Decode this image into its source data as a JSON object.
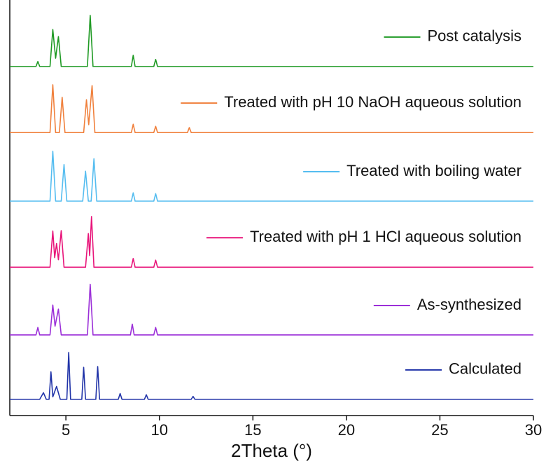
{
  "chart_data": {
    "type": "line",
    "x_label": "2Theta (°)",
    "xlim": [
      2,
      30
    ],
    "xticks": [
      5,
      10,
      15,
      20,
      25,
      30
    ],
    "ylim": [
      0,
      100
    ],
    "series": [
      {
        "name": "Post catalysis",
        "color": "#1f9a24",
        "x": [
          2,
          3.4,
          3.5,
          3.6,
          4.15,
          4.3,
          4.45,
          4.6,
          4.75,
          6.15,
          6.3,
          6.45,
          8.5,
          8.6,
          8.7,
          9.7,
          9.8,
          9.9,
          30
        ],
        "values": [
          84,
          84,
          85.2,
          84,
          84,
          92.9,
          86,
          91.2,
          84,
          84,
          96.3,
          84,
          84,
          86.7,
          84,
          84,
          85.7,
          84,
          84
        ]
      },
      {
        "name": "Treated with pH 10 NaOH aqueous solution",
        "color": "#f0803c",
        "x": [
          2,
          4.15,
          4.3,
          4.45,
          4.65,
          4.8,
          4.95,
          5.95,
          6.1,
          6.22,
          6.4,
          6.55,
          8.5,
          8.6,
          8.7,
          9.7,
          9.8,
          9.9,
          11.5,
          11.6,
          11.7,
          30
        ],
        "values": [
          68.1,
          68.1,
          79.6,
          68.1,
          68.1,
          76.6,
          68.1,
          68.1,
          76.0,
          70,
          79.4,
          68.1,
          68.1,
          70.1,
          68.1,
          68.1,
          69.6,
          68.1,
          68.1,
          69.3,
          68.1,
          68.1
        ]
      },
      {
        "name": "Treated with boiling water",
        "color": "#55bdf0",
        "x": [
          2,
          4.15,
          4.3,
          4.45,
          4.75,
          4.9,
          5.05,
          5.9,
          6.05,
          6.2,
          6.35,
          6.5,
          6.65,
          8.5,
          8.6,
          8.7,
          9.7,
          9.8,
          9.9,
          30
        ],
        "values": [
          51.6,
          51.6,
          63.6,
          51.6,
          51.6,
          60.4,
          51.6,
          51.6,
          58.8,
          51.6,
          51.6,
          61.8,
          51.6,
          51.6,
          53.6,
          51.6,
          51.6,
          53.4,
          51.6,
          51.6
        ]
      },
      {
        "name": "Treated with pH 1 HCl aqueous solution",
        "color": "#e8157a",
        "x": [
          2,
          4.15,
          4.3,
          4.4,
          4.5,
          4.6,
          4.75,
          4.9,
          6.05,
          6.2,
          6.27,
          6.37,
          6.5,
          8.5,
          8.6,
          8.7,
          9.7,
          9.8,
          9.9,
          30
        ],
        "values": [
          35.7,
          35.7,
          44.4,
          38,
          41.4,
          37.5,
          44.5,
          35.7,
          35.7,
          43.8,
          38.5,
          47.9,
          35.7,
          35.7,
          37.8,
          35.7,
          35.7,
          37.4,
          35.7,
          35.7
        ]
      },
      {
        "name": "As-synthesized",
        "color": "#9b2fd8",
        "x": [
          2,
          3.4,
          3.5,
          3.6,
          4.15,
          4.3,
          4.42,
          4.6,
          4.75,
          6.15,
          6.3,
          6.45,
          8.45,
          8.55,
          8.65,
          9.7,
          9.8,
          9.9,
          30
        ],
        "values": [
          19.4,
          19.4,
          21.2,
          19.4,
          19.4,
          26.6,
          21.5,
          25.6,
          19.4,
          19.4,
          31.6,
          19.4,
          19.4,
          22.0,
          19.4,
          19.4,
          21.2,
          19.4,
          19.4
        ]
      },
      {
        "name": "Calculated",
        "color": "#2033a8",
        "x": [
          2,
          3.6,
          3.8,
          3.95,
          4.1,
          4.2,
          4.3,
          4.5,
          4.7,
          5.05,
          5.15,
          5.25,
          5.85,
          5.95,
          6.05,
          6.6,
          6.7,
          6.8,
          7.8,
          7.9,
          8.0,
          9.2,
          9.3,
          9.4,
          11.7,
          11.8,
          11.9,
          30
        ],
        "values": [
          3.9,
          3.9,
          5.5,
          3.9,
          3.9,
          10.5,
          4.5,
          7.0,
          3.9,
          3.9,
          15.2,
          3.9,
          3.9,
          11.6,
          3.9,
          3.9,
          11.8,
          3.9,
          3.9,
          5.3,
          3.9,
          3.9,
          5.0,
          3.9,
          3.9,
          4.6,
          3.9,
          3.9
        ]
      }
    ]
  }
}
